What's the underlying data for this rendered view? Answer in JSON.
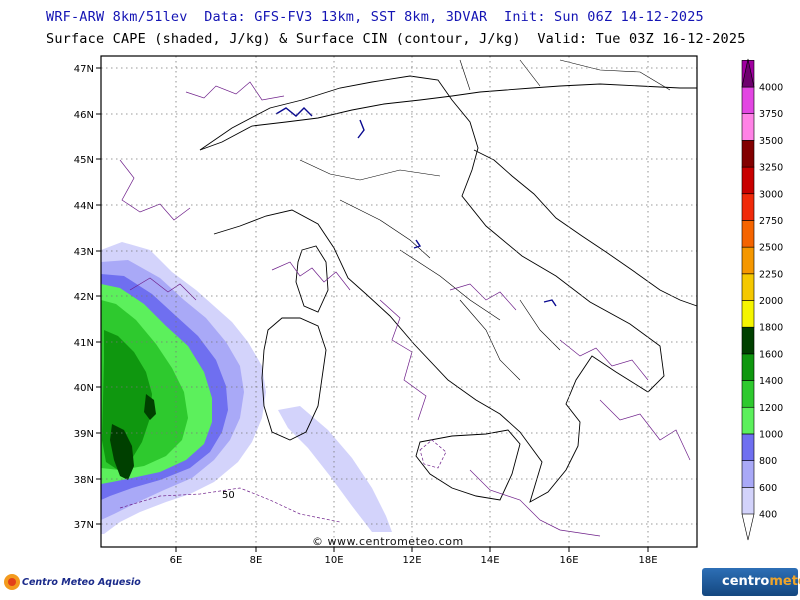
{
  "header": {
    "line1": "WRF-ARW 8km/51lev  Data: GFS-FV3 13km, SST 8km, 3DVAR  Init: Sun 06Z 14-12-2025",
    "line2": "Surface CAPE (shaded, J/kg) & Surface CIN (contour, J/kg)  Valid: Tue 03Z 16-12-2025"
  },
  "map": {
    "lat_labels": [
      "47N",
      "46N",
      "45N",
      "44N",
      "43N",
      "42N",
      "41N",
      "40N",
      "39N",
      "38N",
      "37N"
    ],
    "lon_labels": [
      "6E",
      "8E",
      "10E",
      "12E",
      "14E",
      "16E",
      "18E"
    ],
    "cin_label": "50",
    "watermark": "© www.centrometeo.com"
  },
  "colorbar": {
    "levels": [
      "400",
      "600",
      "800",
      "1000",
      "1200",
      "1400",
      "1600",
      "1800",
      "2000",
      "2250",
      "2500",
      "2750",
      "3000",
      "3250",
      "3500",
      "3750",
      "4000"
    ],
    "colors": [
      "#d3d3fb",
      "#a9a9f7",
      "#6f6ff0",
      "#5cf05c",
      "#2ec92e",
      "#0f970f",
      "#004000",
      "#f5f500",
      "#f5c800",
      "#f59700",
      "#f56400",
      "#f02a0a",
      "#c80000",
      "#820000",
      "#ff82e6",
      "#e246e2",
      "#a000a0",
      "#6e006e"
    ]
  },
  "logos": {
    "left_text": "Centro Meteo Aquesio",
    "right_text_main": "centro",
    "right_text_accent": "meteo"
  }
}
